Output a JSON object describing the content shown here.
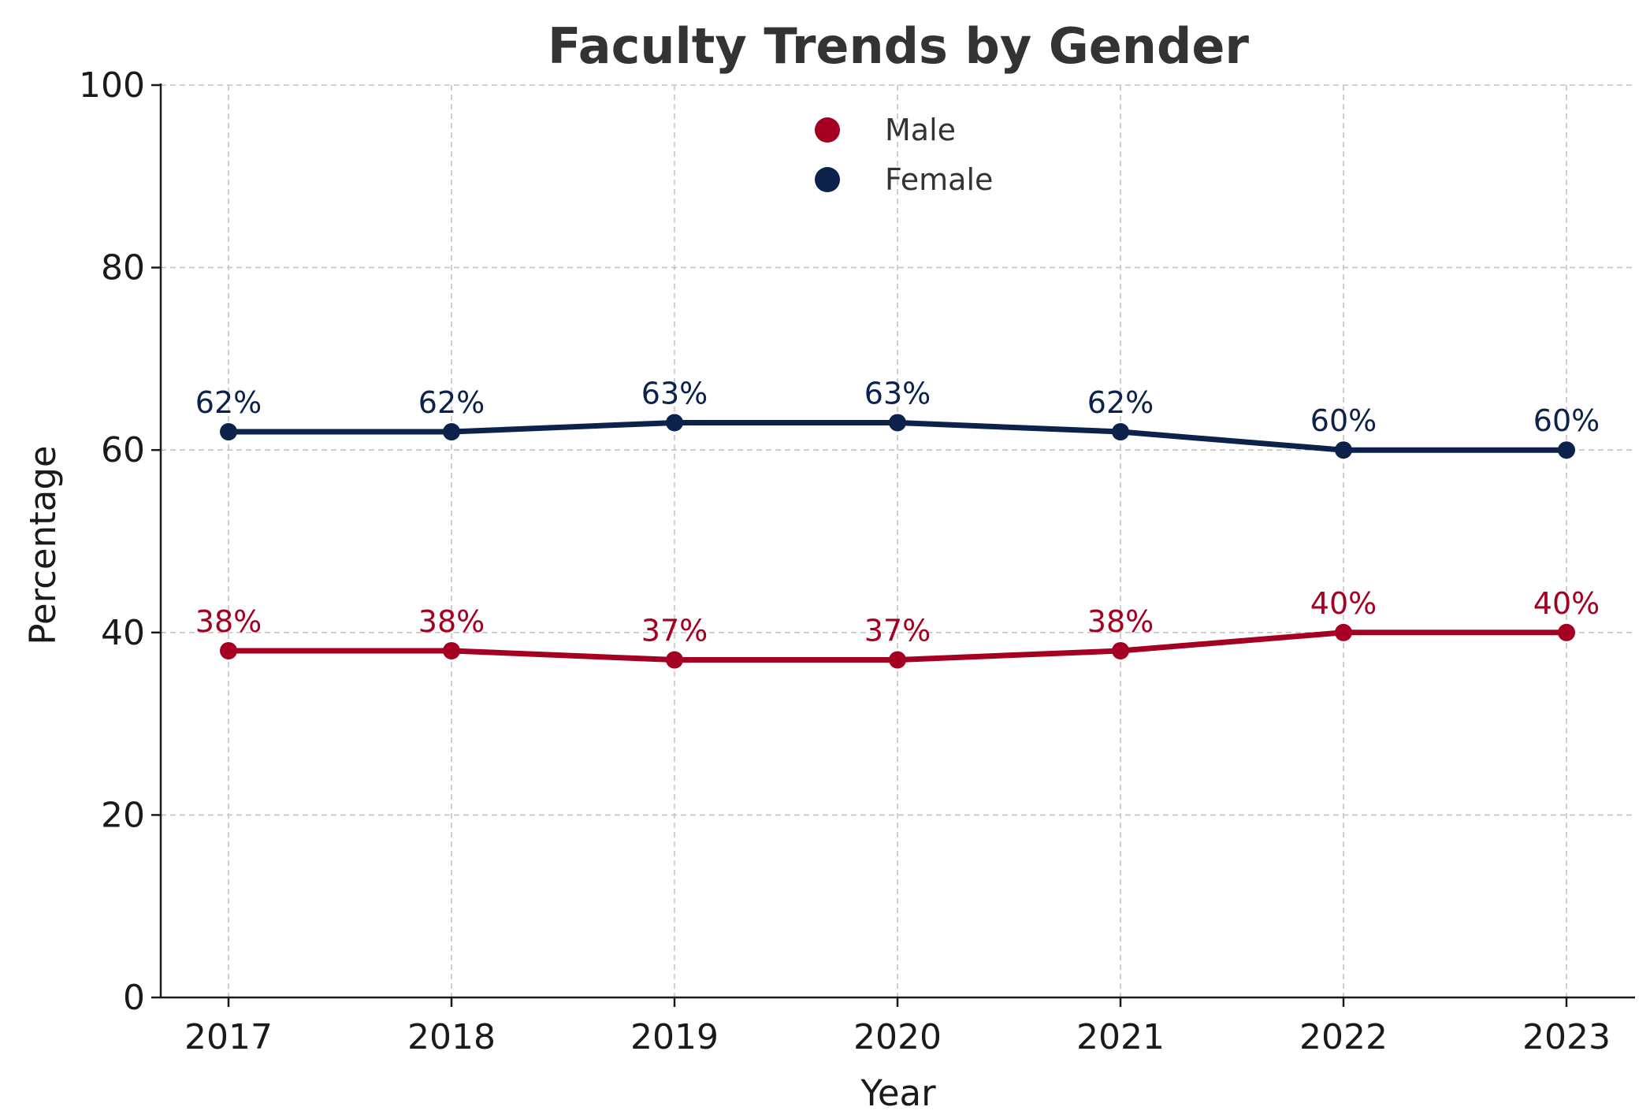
{
  "chart_data": {
    "type": "line",
    "title": "Faculty Trends by Gender",
    "xlabel": "Year",
    "ylabel": "Percentage",
    "categories": [
      "2017",
      "2018",
      "2019",
      "2020",
      "2021",
      "2022",
      "2023"
    ],
    "ylim": [
      0,
      100
    ],
    "yticks": [
      0,
      20,
      40,
      60,
      80,
      100
    ],
    "grid": true,
    "legend_position": "top-center",
    "series": [
      {
        "name": "Male",
        "color": "#a50021",
        "values": [
          38,
          38,
          37,
          37,
          38,
          40,
          40
        ],
        "labels": [
          "38%",
          "38%",
          "37%",
          "37%",
          "38%",
          "40%",
          "40%"
        ]
      },
      {
        "name": "Female",
        "color": "#0c224a",
        "values": [
          62,
          62,
          63,
          63,
          62,
          60,
          60
        ],
        "labels": [
          "62%",
          "62%",
          "63%",
          "63%",
          "62%",
          "60%",
          "60%"
        ]
      }
    ]
  }
}
